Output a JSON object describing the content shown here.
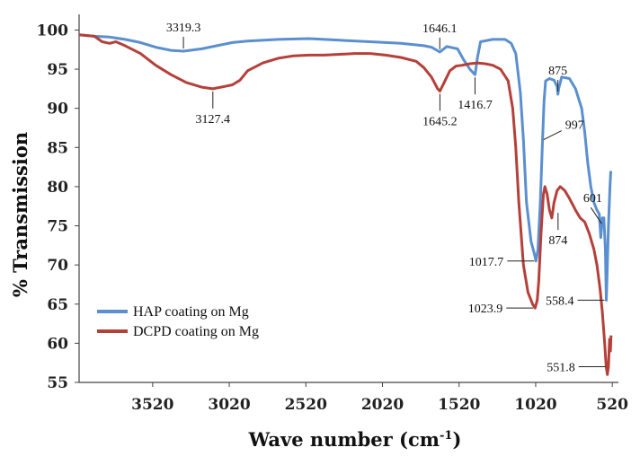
{
  "chart_data": {
    "type": "line",
    "xlabel": "Wave number (cm",
    "xlabel_sup": "-1",
    "xlabel_close": ")",
    "ylabel": "% Transmission",
    "xlim": [
      4000,
      480
    ],
    "ylim": [
      55,
      102
    ],
    "xticks": [
      3520,
      3020,
      2520,
      2020,
      1520,
      1020,
      520
    ],
    "yticks": [
      55,
      60,
      65,
      70,
      75,
      80,
      85,
      90,
      95,
      100
    ],
    "grid": false,
    "legend_position": "bottom-left",
    "series": [
      {
        "name": "HAP coating on Mg",
        "color": "#5b8fcf",
        "points": [
          [
            4000,
            99.4
          ],
          [
            3900,
            99.2
          ],
          [
            3800,
            99.1
          ],
          [
            3700,
            98.8
          ],
          [
            3600,
            98.4
          ],
          [
            3500,
            97.8
          ],
          [
            3400,
            97.4
          ],
          [
            3319,
            97.3
          ],
          [
            3200,
            97.6
          ],
          [
            3100,
            98
          ],
          [
            3000,
            98.4
          ],
          [
            2900,
            98.6
          ],
          [
            2700,
            98.8
          ],
          [
            2500,
            98.9
          ],
          [
            2300,
            98.7
          ],
          [
            2100,
            98.5
          ],
          [
            1900,
            98.3
          ],
          [
            1750,
            98
          ],
          [
            1700,
            97.8
          ],
          [
            1646,
            97.2
          ],
          [
            1600,
            97.9
          ],
          [
            1530,
            97.6
          ],
          [
            1490,
            96.2
          ],
          [
            1450,
            95
          ],
          [
            1416,
            94.3
          ],
          [
            1400,
            96.5
          ],
          [
            1380,
            98.5
          ],
          [
            1300,
            98.8
          ],
          [
            1220,
            98.8
          ],
          [
            1180,
            98.3
          ],
          [
            1150,
            97
          ],
          [
            1120,
            92
          ],
          [
            1100,
            86
          ],
          [
            1080,
            78
          ],
          [
            1050,
            73
          ],
          [
            1030,
            71.5
          ],
          [
            1018,
            70.5
          ],
          [
            1005,
            72
          ],
          [
            990,
            78
          ],
          [
            975,
            86
          ],
          [
            965,
            91
          ],
          [
            955,
            93.5
          ],
          [
            930,
            93.8
          ],
          [
            900,
            93.6
          ],
          [
            880,
            92.8
          ],
          [
            875,
            91.8
          ],
          [
            870,
            92.5
          ],
          [
            850,
            94
          ],
          [
            800,
            93.8
          ],
          [
            760,
            92.5
          ],
          [
            720,
            90
          ],
          [
            700,
            87
          ],
          [
            680,
            83
          ],
          [
            660,
            80
          ],
          [
            640,
            78
          ],
          [
            620,
            77
          ],
          [
            605,
            76.5
          ],
          [
            595,
            73.5
          ],
          [
            585,
            76
          ],
          [
            575,
            76
          ],
          [
            565,
            72
          ],
          [
            559,
            65.5
          ],
          [
            555,
            68
          ],
          [
            545,
            75
          ],
          [
            535,
            80
          ],
          [
            530,
            82
          ]
        ]
      },
      {
        "name": "DCPD coating on Mg",
        "color": "#b5403a",
        "points": [
          [
            4000,
            99.4
          ],
          [
            3900,
            99.2
          ],
          [
            3850,
            98.5
          ],
          [
            3800,
            98.3
          ],
          [
            3760,
            98.5
          ],
          [
            3700,
            98
          ],
          [
            3600,
            97
          ],
          [
            3500,
            95.5
          ],
          [
            3400,
            94.3
          ],
          [
            3300,
            93.3
          ],
          [
            3200,
            92.7
          ],
          [
            3127,
            92.5
          ],
          [
            3050,
            92.8
          ],
          [
            3000,
            93
          ],
          [
            2950,
            93.6
          ],
          [
            2900,
            94.8
          ],
          [
            2800,
            95.8
          ],
          [
            2700,
            96.4
          ],
          [
            2600,
            96.7
          ],
          [
            2500,
            96.8
          ],
          [
            2400,
            96.8
          ],
          [
            2300,
            96.9
          ],
          [
            2200,
            97
          ],
          [
            2100,
            97
          ],
          [
            2000,
            96.8
          ],
          [
            1900,
            96.5
          ],
          [
            1800,
            96
          ],
          [
            1750,
            95.2
          ],
          [
            1700,
            94
          ],
          [
            1660,
            92.5
          ],
          [
            1645,
            92.2
          ],
          [
            1620,
            93.2
          ],
          [
            1580,
            94.8
          ],
          [
            1540,
            95.4
          ],
          [
            1500,
            95.5
          ],
          [
            1450,
            95.7
          ],
          [
            1400,
            95.8
          ],
          [
            1350,
            95.7
          ],
          [
            1300,
            95.5
          ],
          [
            1250,
            95
          ],
          [
            1200,
            93.5
          ],
          [
            1170,
            90
          ],
          [
            1150,
            85
          ],
          [
            1130,
            78
          ],
          [
            1100,
            70
          ],
          [
            1070,
            66.5
          ],
          [
            1040,
            65
          ],
          [
            1024,
            64.5
          ],
          [
            1010,
            65.5
          ],
          [
            1000,
            68
          ],
          [
            985,
            74
          ],
          [
            970,
            79
          ],
          [
            960,
            80
          ],
          [
            945,
            79
          ],
          [
            930,
            77
          ],
          [
            915,
            76
          ],
          [
            900,
            78
          ],
          [
            880,
            79.5
          ],
          [
            860,
            80
          ],
          [
            830,
            79.5
          ],
          [
            800,
            78.5
          ],
          [
            760,
            77
          ],
          [
            730,
            76
          ],
          [
            700,
            75.5
          ],
          [
            670,
            74
          ],
          [
            640,
            72
          ],
          [
            620,
            70
          ],
          [
            600,
            67
          ],
          [
            585,
            64
          ],
          [
            570,
            60
          ],
          [
            560,
            57
          ],
          [
            552,
            56
          ],
          [
            545,
            57
          ],
          [
            538,
            60.5
          ],
          [
            532,
            59
          ],
          [
            528,
            61
          ]
        ]
      }
    ],
    "annotations": [
      {
        "text": "3319.3",
        "x": 3319,
        "y": 97.3,
        "pos": "above"
      },
      {
        "text": "1646.1",
        "x": 1646,
        "y": 97.2,
        "pos": "above"
      },
      {
        "text": "1416.7",
        "x": 1416,
        "y": 94.3,
        "pos": "below"
      },
      {
        "text": "3127.4",
        "x": 3127,
        "y": 92.5,
        "pos": "below"
      },
      {
        "text": "1645.2",
        "x": 1645,
        "y": 92.2,
        "pos": "below"
      },
      {
        "text": "875",
        "x": 875,
        "y": 91.8,
        "pos": "above"
      },
      {
        "text": "997",
        "x": 980,
        "y": 86,
        "pos": "right"
      },
      {
        "text": "601",
        "x": 601,
        "y": 75.5,
        "pos": "rightup"
      },
      {
        "text": "874",
        "x": 874,
        "y": 77,
        "pos": "below"
      },
      {
        "text": "1017.7",
        "x": 1018,
        "y": 70.5,
        "pos": "left"
      },
      {
        "text": "1023.9",
        "x": 1024,
        "y": 64.5,
        "pos": "left"
      },
      {
        "text": "558.4",
        "x": 559,
        "y": 65.5,
        "pos": "left"
      },
      {
        "text": "551.8",
        "x": 552,
        "y": 57,
        "pos": "left"
      }
    ]
  }
}
